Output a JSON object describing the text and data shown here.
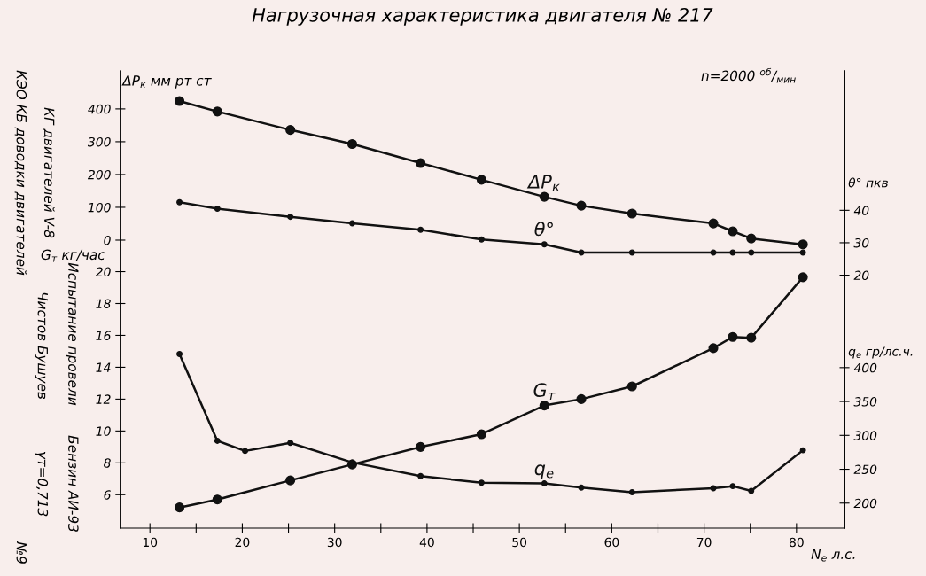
{
  "chart_data": [
    {
      "type": "line",
      "title": "Нагрузочная характеристика двигателя № 217",
      "ylabel": "ΔP$_{к}$ мм рт ст",
      "y2label": "θ° пкв",
      "tick_labels": "y",
      "x": [
        13.2,
        17.3,
        25.2,
        31.9,
        39.3,
        45.9,
        52.7,
        56.7,
        62.2,
        71.0,
        73.1,
        75.1,
        80.7
      ],
      "xlim": [
        6.8,
        85.2
      ],
      "ylim": [
        -878,
        516
      ],
      "yticks": [
        0,
        100,
        200,
        300,
        400
      ],
      "y2lim": [
        -58,
        83
      ],
      "y2ticks": [
        20,
        30,
        40
      ],
      "series": [
        {
          "name": "ΔP$_{к}$",
          "color": "#111111",
          "values": [
            424,
            392,
            336,
            293,
            235,
            184,
            132,
            105,
            81,
            51,
            27,
            5,
            -13
          ]
        },
        {
          "name": "θ°",
          "color": "#111111",
          "axis": "y2",
          "values": [
            42.5,
            40.5,
            38,
            36,
            34,
            31,
            29.5,
            27,
            27,
            27,
            27,
            27,
            27
          ]
        }
      ],
      "marker": "circle",
      "line_style": "solid",
      "grid": false,
      "annotations": [
        "n=2000 $^{об}$/$_{мин}$",
        "КЭО КБ доводки двигателей",
        "КГ двигателей V-8",
        "Испытание провели",
        "Чистов Бушуев",
        "Бензин АИ-93",
        "γт=0,713",
        "№9"
      ]
    },
    {
      "type": "line",
      "xlabel": "N$_{е}$ л.с.",
      "ylabel": "G$_{т}$ кг/час",
      "y2label": "q$_{е}$ гр/лс.ч.",
      "x": [
        13.2,
        17.3,
        25.2,
        31.9,
        39.3,
        45.9,
        52.7,
        56.7,
        62.2,
        71.0,
        73.1,
        75.1,
        80.7
      ],
      "xlim": [
        6.8,
        85.2
      ],
      "xticks": [
        10,
        {
          "value": 15,
          "label": null
        },
        20,
        {
          "value": 25,
          "label": null
        },
        30,
        {
          "value": 35,
          "label": null
        },
        40,
        {
          "value": 45,
          "label": null
        },
        50,
        {
          "value": 55,
          "label": null
        },
        60,
        {
          "value": 65,
          "label": null
        },
        70,
        {
          "value": 75,
          "label": null
        },
        80
      ],
      "ylim": [
        3.9,
        32.6
      ],
      "yticks": [
        6,
        8,
        10,
        12,
        14,
        16,
        18,
        20
      ],
      "y2lim": [
        163,
        838
      ],
      "y2ticks": [
        200,
        250,
        300,
        350,
        400
      ],
      "series": [
        {
          "name": "G$_{т}$",
          "color": "#111111",
          "values": [
            5.2,
            5.7,
            6.9,
            7.9,
            9.0,
            9.8,
            11.6,
            12.0,
            12.8,
            15.2,
            15.9,
            15.85,
            19.65
          ]
        },
        {
          "name": "q$_{е}$",
          "color": "#111111",
          "axis": "y2",
          "x": [
            13.2,
            17.3,
            20.3,
            25.2,
            31.9,
            39.3,
            45.9,
            52.7,
            56.7,
            62.2,
            71.0,
            73.1,
            75.1,
            80.7
          ],
          "values": [
            420,
            292,
            277,
            289,
            260,
            240,
            230,
            229,
            223,
            216,
            222,
            225,
            218,
            278
          ]
        }
      ],
      "marker": "circle",
      "line_style": "solid",
      "grid": false
    }
  ]
}
